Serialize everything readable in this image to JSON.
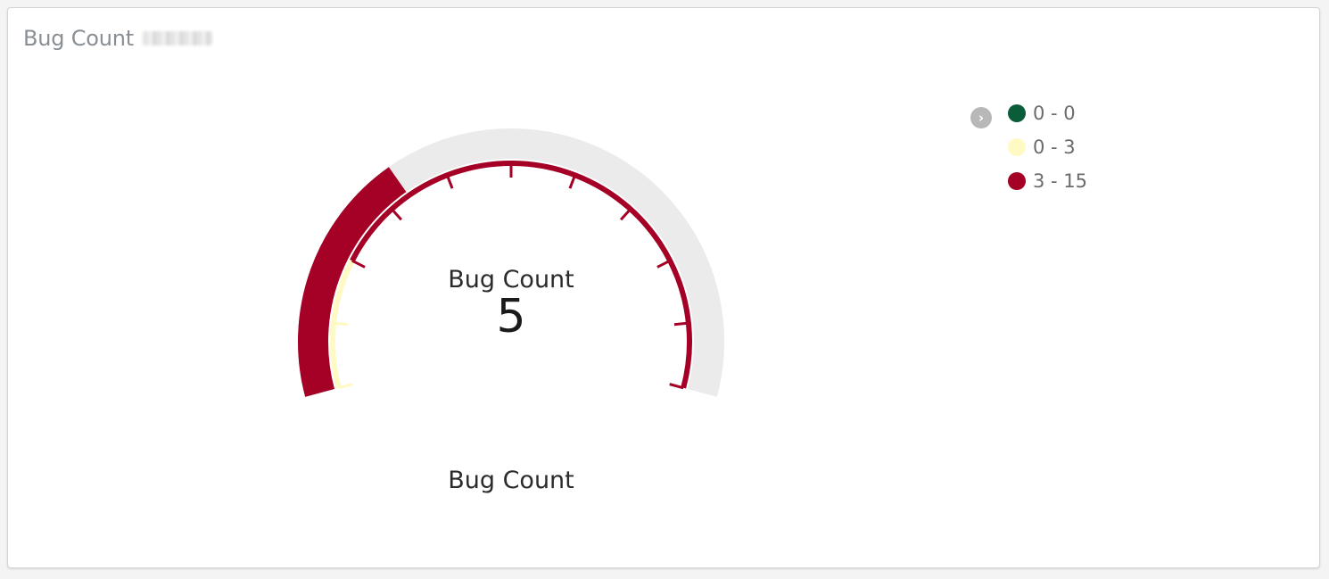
{
  "card": {
    "title": "Bug Count"
  },
  "chart_data": {
    "type": "gauge",
    "title": "Bug Count",
    "value": 5,
    "center_label": "Bug Count",
    "axis_label": "Bug Count",
    "range": [
      0,
      15
    ],
    "bands": [
      {
        "label": "0 - 0",
        "from": 0,
        "to": 0,
        "color": "#0b5d3a"
      },
      {
        "label": "0 - 3",
        "from": 0,
        "to": 3,
        "color": "#fff9c4"
      },
      {
        "label": "3 - 15",
        "from": 3,
        "to": 15,
        "color": "#a50025"
      }
    ],
    "track_color": "#ebebeb"
  },
  "legend": {
    "toggle_icon": "chevron-right-icon",
    "toggle_glyph": "›"
  }
}
